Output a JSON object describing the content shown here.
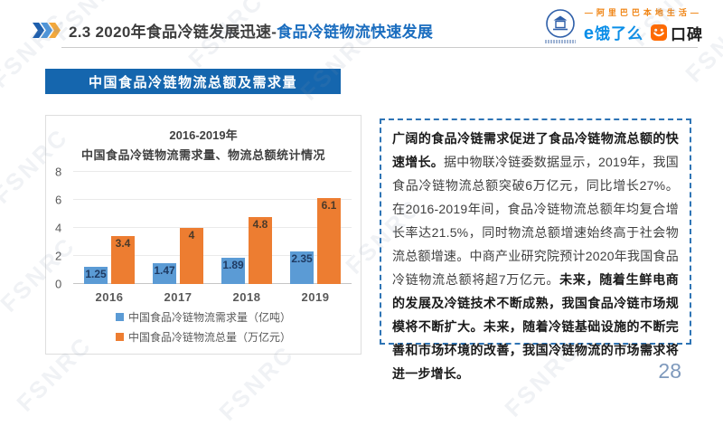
{
  "header": {
    "title_dark": "2.3 2020年食品冷链发展迅速-",
    "title_blue": "食品冷链物流快速发展",
    "tagline": "—阿里巴巴本地生活—",
    "eleme_icon": "e",
    "eleme_label": "饿了么",
    "koubei_label": "口碑"
  },
  "banner": {
    "label": "中国食品冷链物流总额及需求量"
  },
  "chart_data": {
    "type": "bar",
    "title_line1": "2016-2019年",
    "title_line2": "中国食品冷链物流需求量、物流总额统计情况",
    "categories": [
      "2016",
      "2017",
      "2018",
      "2019"
    ],
    "series": [
      {
        "name": "中国食品冷链物流需求量（亿吨）",
        "color": "#5B9BD5",
        "values": [
          1.25,
          1.47,
          1.89,
          2.35
        ]
      },
      {
        "name": "中国食品冷链物流总量（万亿元）",
        "color": "#ED7D31",
        "values": [
          3.4,
          4,
          4.8,
          6.1
        ]
      }
    ],
    "xlabel": "",
    "ylabel": "",
    "ylim": [
      0,
      8
    ],
    "yticks": [
      0,
      2,
      4,
      6,
      8
    ],
    "grid": true,
    "legend_position": "bottom"
  },
  "panel": {
    "p1_bold": "广阔的食品冷链需求促进了食品冷链物流总额的快速增长。",
    "p1_normal": "据中物联冷链委数据显示，2019年，我国食品冷链物流总额突破6万亿元，同比增长27%。在2016-2019年间，食品冷链物流总额年均复合增长率达21.5%，同时物流总额增速始终高于社会物流总额增速。中商产业研究院预计2020年我国食品冷链物流总额将超7万亿元。",
    "p2_bold": "未来，随着生鲜电商的发展及冷链技术不断成熟，我国食品冷链市场规模将不断扩大。未来，随着冷链基础设施的不断完善和市场环境的改善，我国冷链物流的市场需求将进一步增长。"
  },
  "footer": {
    "page_number": "28"
  },
  "watermark": {
    "text": "FSNRC"
  },
  "colors": {
    "banner_blue": "#1566AE",
    "title_blue": "#1A6DBF",
    "series_demand_blue": "#5B9BD5",
    "series_total_orange": "#ED7D31",
    "koubei_orange": "#FF6A00",
    "eleme_blue": "#0A8EE8",
    "tagline_orange": "#F08311"
  }
}
